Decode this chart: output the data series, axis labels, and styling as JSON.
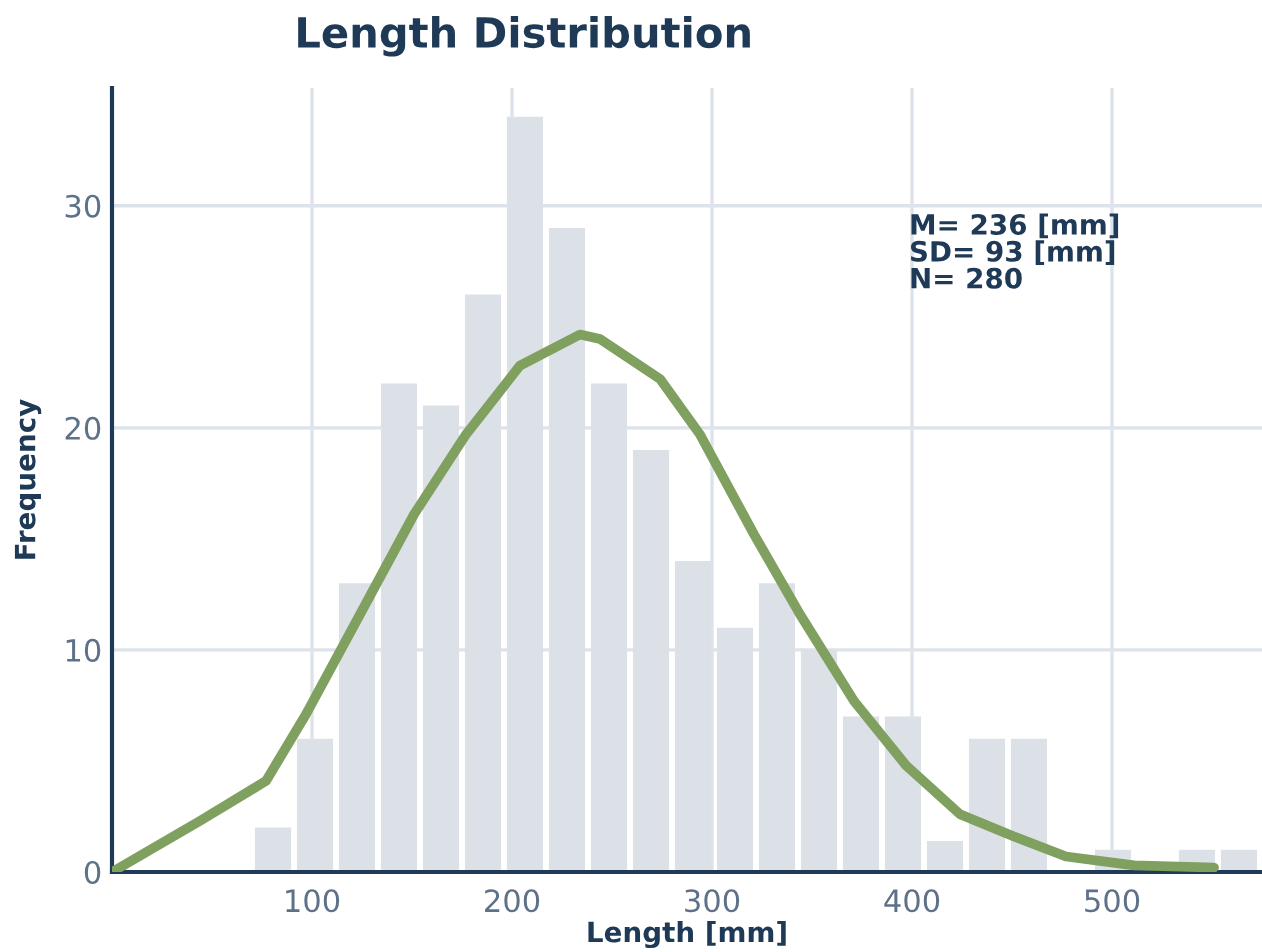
{
  "chart_data": {
    "type": "histogram",
    "title": "Length Distribution",
    "xlabel": "Length [mm]",
    "ylabel": "Frequency",
    "bins": [
      70,
      91,
      112,
      133,
      154,
      175,
      196,
      217,
      238,
      259,
      280,
      301,
      322,
      343,
      364,
      385,
      406,
      427,
      448,
      469,
      490,
      511,
      532,
      553,
      574
    ],
    "values": [
      2,
      6,
      13,
      22,
      21,
      26,
      34,
      29,
      22,
      19,
      14,
      11,
      13,
      10,
      7,
      7,
      1.4,
      6,
      6,
      null,
      1,
      0,
      1,
      1
    ],
    "color": "#dce1e7",
    "series": [
      {
        "type": "line",
        "color": "#7fa05f",
        "x": [
          0,
          44,
          77,
          97,
          124,
          151,
          177,
          204,
          234,
          244,
          274,
          294,
          321,
          344,
          371,
          397,
          424,
          451,
          477,
          511,
          551
        ],
        "values": [
          0,
          2.3,
          4.1,
          7.1,
          11.6,
          16.1,
          19.7,
          22.8,
          24.2,
          24.0,
          22.2,
          19.7,
          15.2,
          11.6,
          7.7,
          4.8,
          2.6,
          1.6,
          0.7,
          0.3,
          0.2
        ]
      }
    ],
    "annotations": [
      "M= 236 [mm]\nSD= 93 [mm]\nN= 280"
    ],
    "xlim": [
      0,
      575
    ],
    "ylim": [
      0,
      35.3
    ],
    "xticks": [
      100,
      200,
      300,
      400,
      500
    ],
    "yticks": [
      0,
      10,
      20,
      30
    ],
    "grid": true,
    "legend": false
  }
}
